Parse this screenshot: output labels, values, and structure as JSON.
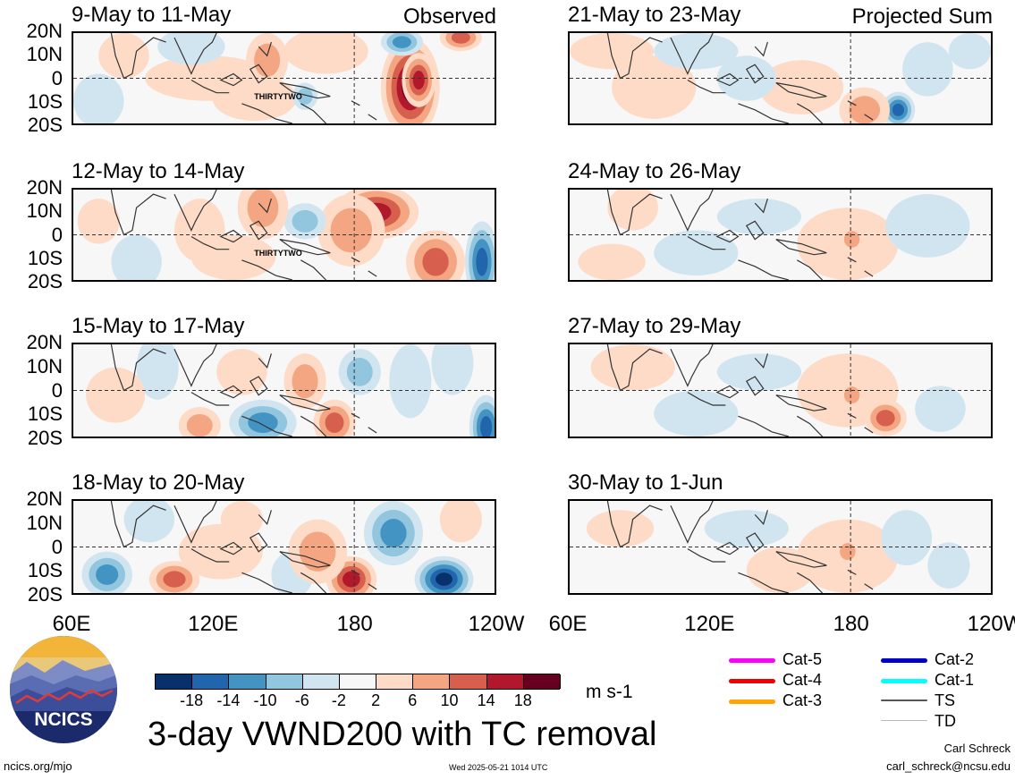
{
  "panels": [
    {
      "id": "p1",
      "period": "9-May to 11-May",
      "corner": "Observed",
      "tc_label": "THIRTYTWO"
    },
    {
      "id": "p2",
      "period": "12-May to 14-May",
      "tc_label": "THIRTYTWO"
    },
    {
      "id": "p3",
      "period": "15-May to 17-May"
    },
    {
      "id": "p4",
      "period": "18-May to 20-May"
    },
    {
      "id": "p5",
      "period": "21-May to 23-May",
      "corner": "Projected Sum"
    },
    {
      "id": "p6",
      "period": "24-May to 26-May"
    },
    {
      "id": "p7",
      "period": "27-May to 29-May"
    },
    {
      "id": "p8",
      "period": "30-May to 1-Jun"
    }
  ],
  "lat_labels": [
    "20N",
    "10N",
    "0",
    "10S",
    "20S"
  ],
  "lon_labels": [
    "60E",
    "120E",
    "180",
    "120W"
  ],
  "colorbar": {
    "colors": [
      "#08306b",
      "#2166ac",
      "#4393c3",
      "#92c5de",
      "#d1e5f0",
      "#f7f7f7",
      "#fddbc7",
      "#f4a582",
      "#d6604d",
      "#b2182b",
      "#67001f"
    ],
    "ticks": [
      "-18",
      "-14",
      "-10",
      "-6",
      "-2",
      "2",
      "6",
      "10",
      "14",
      "18"
    ],
    "unit": "m s-1"
  },
  "tc_legend": [
    {
      "label": "Cat-5",
      "color": "#ff00ff"
    },
    {
      "label": "Cat-4",
      "color": "#ee0000"
    },
    {
      "label": "Cat-3",
      "color": "#ffa500"
    },
    {
      "label": "Cat-2",
      "color": "#0000cc"
    },
    {
      "label": "Cat-1",
      "color": "#00ffff"
    },
    {
      "label": "TS",
      "color": "#555555"
    },
    {
      "label": "TD",
      "color": "#bbbbbb"
    }
  ],
  "logo_text": "NCICS",
  "title": "3-day VWND200 with TC removal",
  "footer": {
    "site": "ncics.org/mjo",
    "timestamp": "Wed 2025-05-21 1014 UTC",
    "author": "Carl Schreck",
    "email": "carl_schreck@ncsu.edu"
  },
  "chart_data": {
    "type": "heatmap",
    "variable": "VWND200",
    "x_range": [
      "60E",
      "120W"
    ],
    "y_range": [
      "20S",
      "20N"
    ],
    "unit": "m s-1",
    "color_levels": [
      -18,
      -14,
      -10,
      -6,
      -2,
      2,
      6,
      10,
      14,
      18
    ],
    "grid": "dashed equator and 180 lines",
    "legend_placement": "bottom"
  }
}
